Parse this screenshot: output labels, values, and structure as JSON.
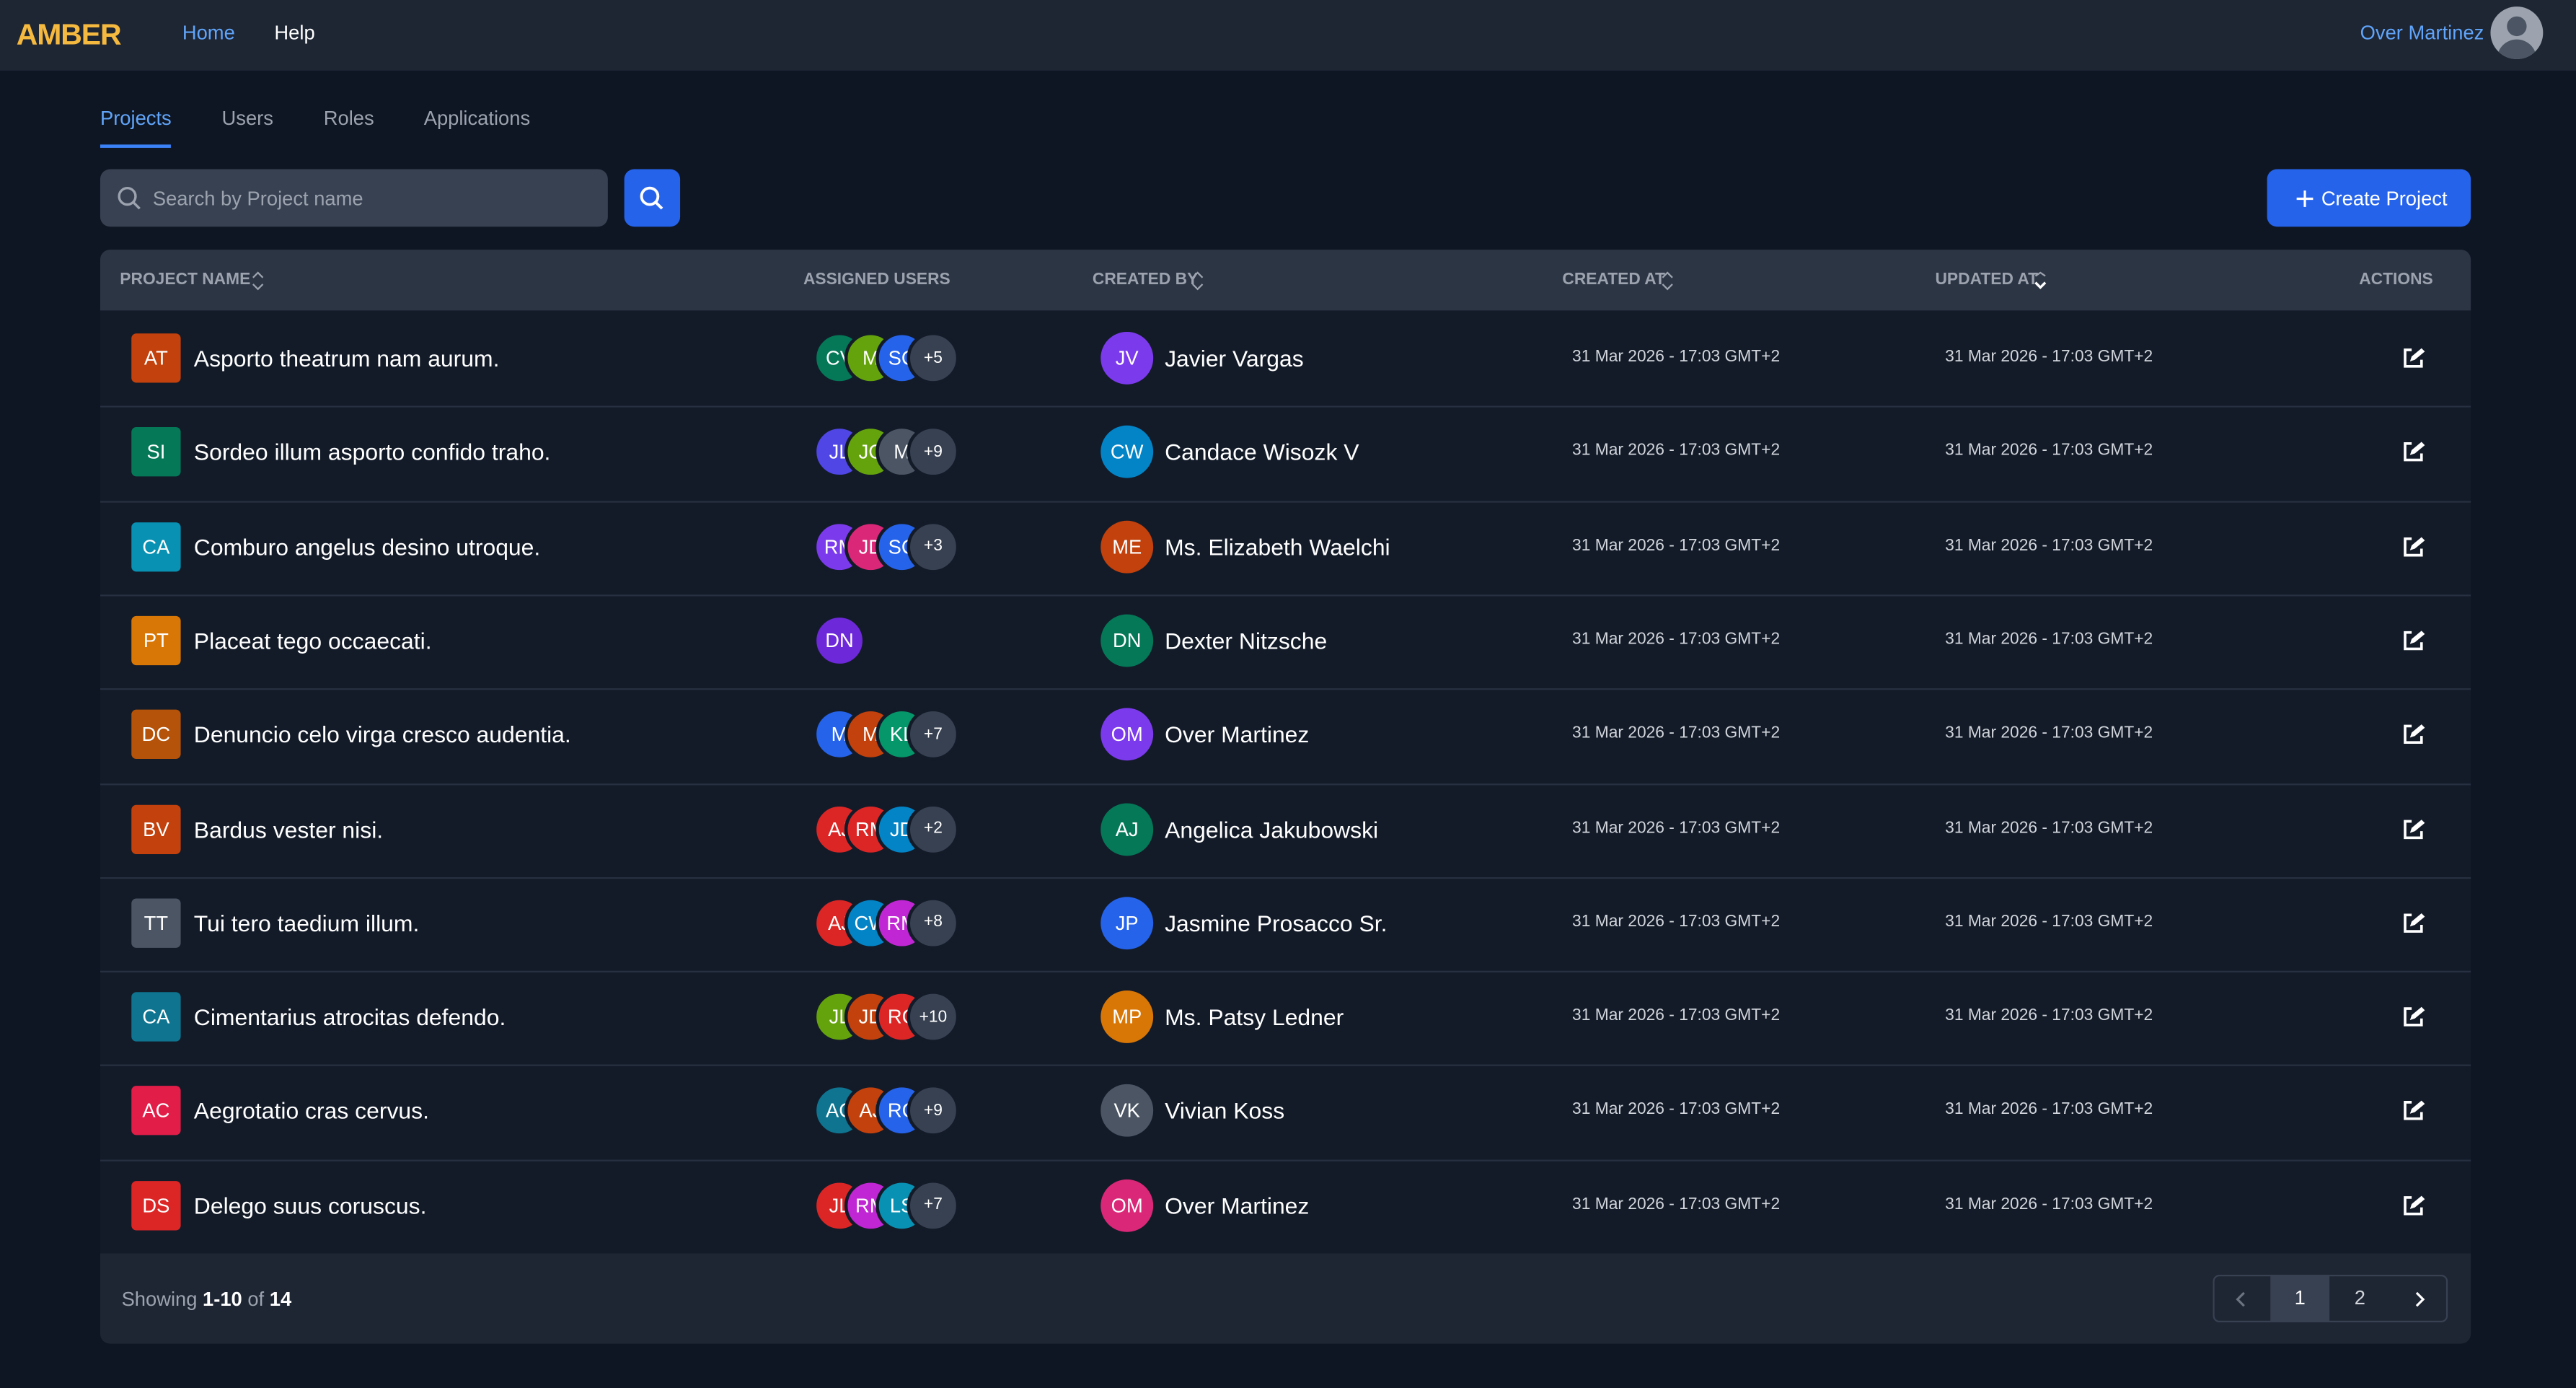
{
  "nav": {
    "logo": "AMBER",
    "links": [
      "Home",
      "Help"
    ],
    "user": "Over Martinez"
  },
  "tabs": [
    "Projects",
    "Users",
    "Roles",
    "Applications"
  ],
  "search": {
    "placeholder": "Search by Project name"
  },
  "create_button": "Create Project",
  "table": {
    "headers": [
      "PROJECT NAME",
      "ASSIGNED USERS",
      "CREATED BY",
      "CREATED AT",
      "UPDATED AT",
      "ACTIONS"
    ],
    "rows": [
      {
        "initials": "AT",
        "color": "#c2410c",
        "name": "Asporto theatrum nam aurum.",
        "users": [
          {
            "initials": "CV",
            "color": "#047857"
          },
          {
            "initials": "M",
            "color": "#65a30d"
          },
          {
            "initials": "SC",
            "color": "#2563eb"
          }
        ],
        "more": "+5",
        "creator": {
          "initials": "JV",
          "color": "#7c3aed",
          "name": "Javier Vargas"
        },
        "created_at": "31 Mar 2026 - 17:03 GMT+2",
        "updated_at": "31 Mar 2026 - 17:03 GMT+2"
      },
      {
        "initials": "SI",
        "color": "#047857",
        "name": "Sordeo illum asporto confido traho.",
        "users": [
          {
            "initials": "JL",
            "color": "#4f46e5"
          },
          {
            "initials": "JC",
            "color": "#65a30d"
          },
          {
            "initials": "M",
            "color": "#4b5563"
          }
        ],
        "more": "+9",
        "creator": {
          "initials": "CW",
          "color": "#0284c7",
          "name": "Candace Wisozk V"
        },
        "created_at": "31 Mar 2026 - 17:03 GMT+2",
        "updated_at": "31 Mar 2026 - 17:03 GMT+2"
      },
      {
        "initials": "CA",
        "color": "#0891b2",
        "name": "Comburo angelus desino utroque.",
        "users": [
          {
            "initials": "RM",
            "color": "#7c3aed"
          },
          {
            "initials": "JD",
            "color": "#db2777"
          },
          {
            "initials": "SC",
            "color": "#2563eb"
          }
        ],
        "more": "+3",
        "creator": {
          "initials": "ME",
          "color": "#c2410c",
          "name": "Ms. Elizabeth Waelchi"
        },
        "created_at": "31 Mar 2026 - 17:03 GMT+2",
        "updated_at": "31 Mar 2026 - 17:03 GMT+2"
      },
      {
        "initials": "PT",
        "color": "#d97706",
        "name": "Placeat tego occaecati.",
        "users": [
          {
            "initials": "DN",
            "color": "#6d28d9"
          }
        ],
        "creator": {
          "initials": "DN",
          "color": "#047857",
          "name": "Dexter Nitzsche"
        },
        "created_at": "31 Mar 2026 - 17:03 GMT+2",
        "updated_at": "31 Mar 2026 - 17:03 GMT+2"
      },
      {
        "initials": "DC",
        "color": "#b45309",
        "name": "Denuncio celo virga cresco audentia.",
        "users": [
          {
            "initials": "M",
            "color": "#2563eb"
          },
          {
            "initials": "M",
            "color": "#c2410c"
          },
          {
            "initials": "KL",
            "color": "#059669"
          }
        ],
        "more": "+7",
        "creator": {
          "initials": "OM",
          "color": "#7c3aed",
          "name": "Over Martinez"
        },
        "created_at": "31 Mar 2026 - 17:03 GMT+2",
        "updated_at": "31 Mar 2026 - 17:03 GMT+2"
      },
      {
        "initials": "BV",
        "color": "#c2410c",
        "name": "Bardus vester nisi.",
        "users": [
          {
            "initials": "AJ",
            "color": "#dc2626"
          },
          {
            "initials": "RM",
            "color": "#dc2626"
          },
          {
            "initials": "JD",
            "color": "#0284c7"
          }
        ],
        "more": "+2",
        "creator": {
          "initials": "AJ",
          "color": "#047857",
          "name": "Angelica Jakubowski"
        },
        "created_at": "31 Mar 2026 - 17:03 GMT+2",
        "updated_at": "31 Mar 2026 - 17:03 GMT+2"
      },
      {
        "initials": "TT",
        "color": "#4b5563",
        "name": "Tui tero taedium illum.",
        "users": [
          {
            "initials": "AJ",
            "color": "#dc2626"
          },
          {
            "initials": "CW",
            "color": "#0284c7"
          },
          {
            "initials": "RM",
            "color": "#c026d3"
          }
        ],
        "more": "+8",
        "creator": {
          "initials": "JP",
          "color": "#2563eb",
          "name": "Jasmine Prosacco Sr."
        },
        "created_at": "31 Mar 2026 - 17:03 GMT+2",
        "updated_at": "31 Mar 2026 - 17:03 GMT+2"
      },
      {
        "initials": "CA",
        "color": "#0e7490",
        "name": "Cimentarius atrocitas defendo.",
        "users": [
          {
            "initials": "JL",
            "color": "#65a30d"
          },
          {
            "initials": "JD",
            "color": "#c2410c"
          },
          {
            "initials": "RC",
            "color": "#dc2626"
          }
        ],
        "more": "+10",
        "creator": {
          "initials": "MP",
          "color": "#d97706",
          "name": "Ms. Patsy Ledner"
        },
        "created_at": "31 Mar 2026 - 17:03 GMT+2",
        "updated_at": "31 Mar 2026 - 17:03 GMT+2"
      },
      {
        "initials": "AC",
        "color": "#e11d48",
        "name": "Aegrotatio cras cervus.",
        "users": [
          {
            "initials": "AC",
            "color": "#0e7490"
          },
          {
            "initials": "AJ",
            "color": "#c2410c"
          },
          {
            "initials": "RC",
            "color": "#2563eb"
          }
        ],
        "more": "+9",
        "creator": {
          "initials": "VK",
          "color": "#4b5563",
          "name": "Vivian Koss"
        },
        "created_at": "31 Mar 2026 - 17:03 GMT+2",
        "updated_at": "31 Mar 2026 - 17:03 GMT+2"
      },
      {
        "initials": "DS",
        "color": "#dc2626",
        "name": "Delego suus coruscus.",
        "users": [
          {
            "initials": "JL",
            "color": "#dc2626"
          },
          {
            "initials": "RM",
            "color": "#c026d3"
          },
          {
            "initials": "LS",
            "color": "#0891b2"
          }
        ],
        "more": "+7",
        "creator": {
          "initials": "OM",
          "color": "#db2777",
          "name": "Over Martinez"
        },
        "created_at": "31 Mar 2026 - 17:03 GMT+2",
        "updated_at": "31 Mar 2026 - 17:03 GMT+2"
      }
    ]
  },
  "footer": {
    "showing": "Showing",
    "range": "1-10",
    "of": "of",
    "total": "14"
  },
  "pagination": [
    "1",
    "2"
  ]
}
